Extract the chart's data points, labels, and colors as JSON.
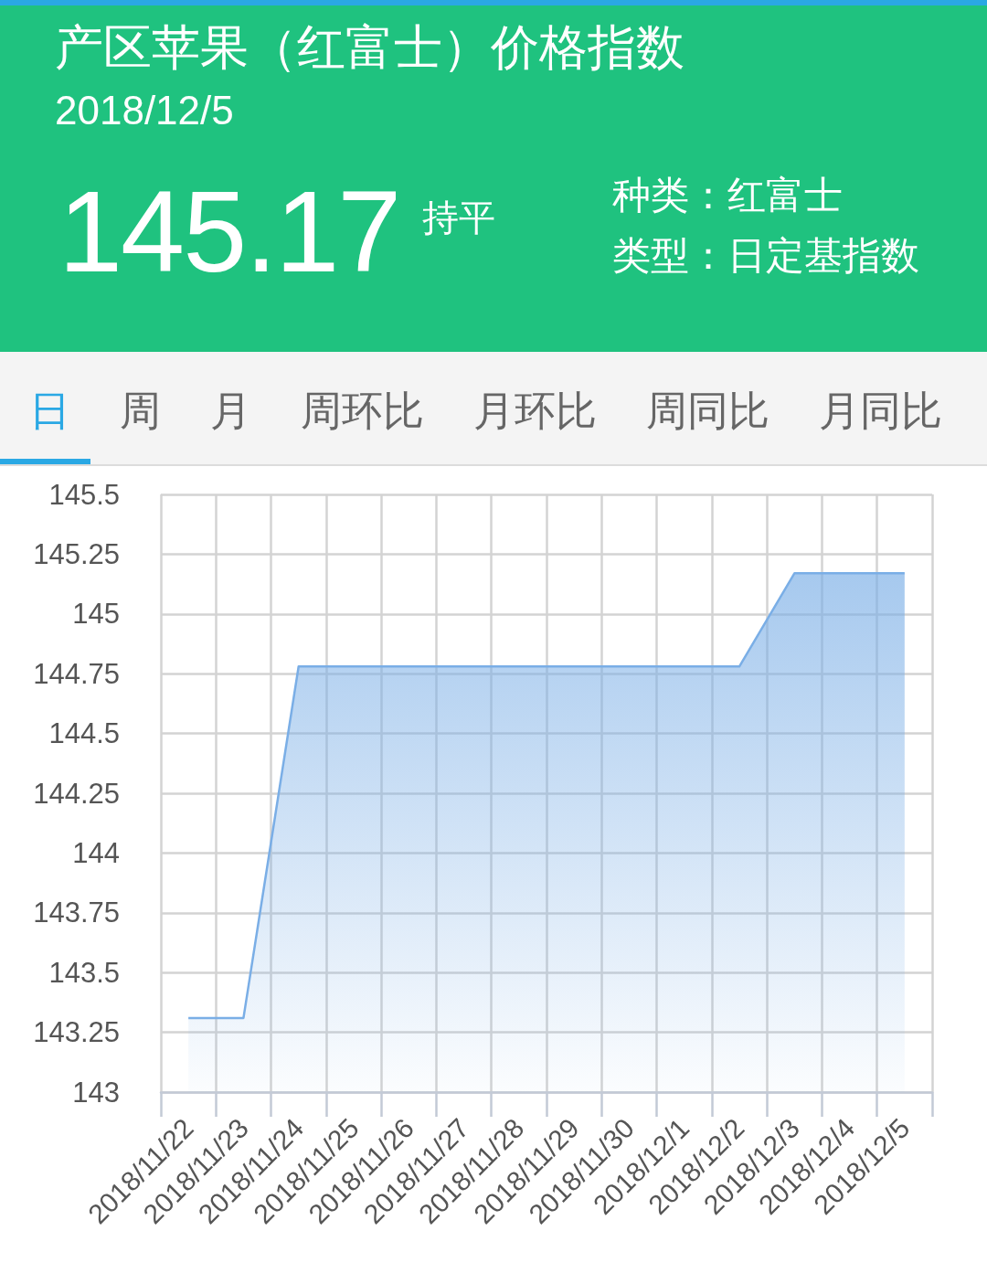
{
  "chart_data": {
    "type": "area",
    "title": "产区苹果（红富士）价格指数",
    "subtitle": "2018/12/5",
    "annotations": [
      "145.17",
      "持平",
      "种类：红富士",
      "类型：日定基指数",
      "日",
      "周",
      "月",
      "周环比",
      "月环比",
      "周同比",
      "月同比"
    ],
    "categories": [
      "2018/11/22",
      "2018/11/23",
      "2018/11/24",
      "2018/11/25",
      "2018/11/26",
      "2018/11/27",
      "2018/11/28",
      "2018/11/29",
      "2018/11/30",
      "2018/12/1",
      "2018/12/2",
      "2018/12/3",
      "2018/12/4",
      "2018/12/5"
    ],
    "values": [
      143.31,
      143.31,
      144.78,
      144.78,
      144.78,
      144.78,
      144.78,
      144.78,
      144.78,
      144.78,
      144.78,
      145.17,
      145.17,
      145.17
    ],
    "color": "#7aaee6",
    "ylim": [
      143,
      145.5
    ],
    "yticks": [
      143,
      143.25,
      143.5,
      143.75,
      144,
      144.25,
      144.5,
      144.75,
      145,
      145.25,
      145.5
    ],
    "grid": true
  }
}
